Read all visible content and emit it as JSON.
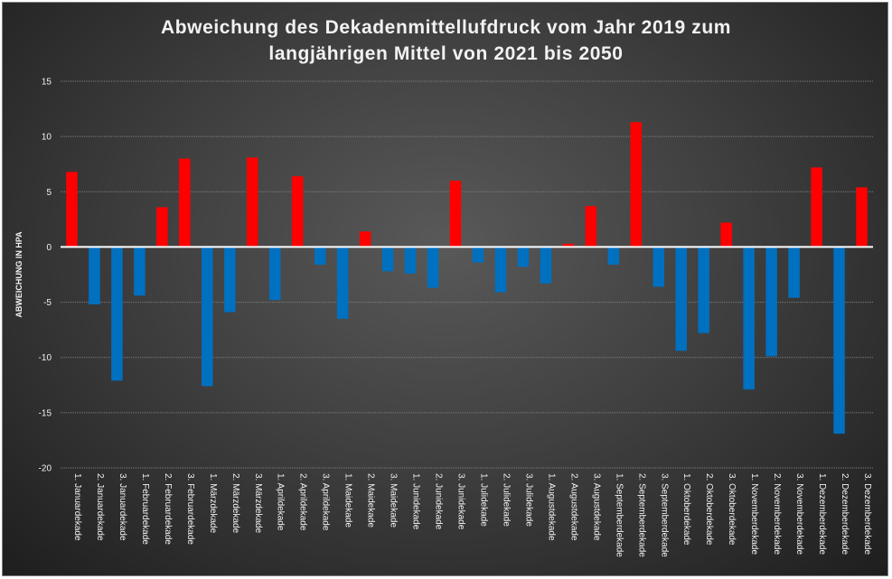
{
  "chart_data": {
    "type": "bar",
    "title_line1": "Abweichung des Dekadenmittellufdruck vom Jahr 2019 zum",
    "title_line2": "langjährigen Mittel von 2021 bis 2050",
    "xlabel": "",
    "ylabel": "ABWEICHUNG IN HPA",
    "ylim": [
      -20,
      15
    ],
    "yticks": [
      15,
      10,
      5,
      0,
      -5,
      -10,
      -15,
      -20
    ],
    "grid": true,
    "legend": "none",
    "colors": {
      "positive": "#ff0000",
      "negative": "#0070c0",
      "axis": "#ffffff",
      "grid": "#7f7f7f",
      "text": "#f2f2f2"
    },
    "categories": [
      "1. Januardekade",
      "2. Januardekade",
      "3. Januardekade",
      "1. Februardekade",
      "2. Februardekade",
      "3. Februardekade",
      "1. Märzdekade",
      "2. Märzdekade",
      "3. Märzdekade",
      "1. Aprildekade",
      "2. Aprildekade",
      "3. Aprildekade",
      "1. Maidekade",
      "2. Maidekade",
      "3. Maidekade",
      "1. Junidekade",
      "2. Junidekade",
      "3. Junidekade",
      "1. Julidekade",
      "2. Julidekade",
      "3. Julidekade",
      "1. Augustdekade",
      "2. Augustdekade",
      "3. Augustdekade",
      "1. Septemberdekade",
      "2. Septemberdekade",
      "3. Septemberdekade",
      "1. Oktoberdekade",
      "2. Oktoberdekade",
      "3. Oktoberdekade",
      "1. Novemberdekade",
      "2. Novemberdekade",
      "3. Novemberdekade",
      "1. Dezemberdekade",
      "2. Dezemberdekade",
      "3. Dezemberdekade"
    ],
    "values": [
      6.8,
      -5.2,
      -12.1,
      -4.4,
      3.6,
      8.0,
      -12.6,
      -5.9,
      8.1,
      -4.8,
      6.4,
      -1.6,
      -6.5,
      1.4,
      -2.2,
      -2.4,
      -3.7,
      6.0,
      -1.4,
      -4.1,
      -1.8,
      -3.3,
      0.3,
      3.7,
      -1.6,
      11.3,
      -3.6,
      -9.4,
      -7.8,
      2.2,
      -12.9,
      -9.9,
      -4.6,
      7.2,
      -16.9,
      5.4
    ]
  }
}
